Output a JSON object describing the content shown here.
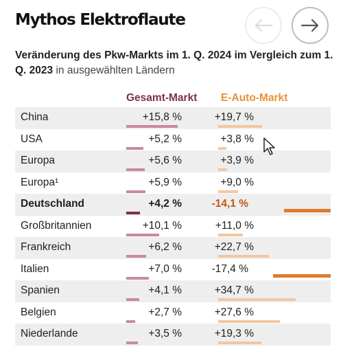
{
  "title": "Mythos Elektroflaute",
  "subtitle_bold": "Veränderung des Pkw-Markts im 1. Q. 2024 im Vergleich zum 1. Q. 2023",
  "subtitle_light": "in ausgewählten Ländern",
  "nav": {
    "prev_icon": "arrow-left-icon",
    "next_icon": "arrow-right-icon"
  },
  "colors": {
    "total_bar": "#c98a9b",
    "total_bar_highlight": "#7d3047",
    "ev_bar": "#f2c7a0",
    "ev_bar_negative": "#e07a2a"
  },
  "chart_data": {
    "type": "table",
    "columns": [
      "Gesamt-Markt",
      "E-Auto-Markt"
    ],
    "rows": [
      {
        "country": "China",
        "total": 15.8,
        "ev": 19.7,
        "total_label": "+15,8 %",
        "ev_label": "+19,7 %"
      },
      {
        "country": "USA",
        "total": 5.2,
        "ev": 3.8,
        "total_label": "+5,2 %",
        "ev_label": "+3,8 %"
      },
      {
        "country": "Europa",
        "total": 5.6,
        "ev": 3.9,
        "total_label": "+5,6 %",
        "ev_label": "+3,9 %"
      },
      {
        "country": "Europa¹",
        "total": 5.9,
        "ev": 9.0,
        "total_label": "+5,9 %",
        "ev_label": "+9,0 %"
      },
      {
        "country": "Deutschland",
        "total": 4.2,
        "ev": -14.1,
        "total_label": "+4,2 %",
        "ev_label": "-14,1 %",
        "highlight": true
      },
      {
        "country": "Großbritannien",
        "total": 10.1,
        "ev": 11.0,
        "total_label": "+10,1 %",
        "ev_label": "+11,0 %"
      },
      {
        "country": "Frankreich",
        "total": 6.2,
        "ev": 22.7,
        "total_label": "+6,2 %",
        "ev_label": "+22,7 %"
      },
      {
        "country": "Italien",
        "total": 7.0,
        "ev": -17.4,
        "total_label": "+7,0 %",
        "ev_label": "-17,4 %"
      },
      {
        "country": "Spanien",
        "total": 4.1,
        "ev": 34.7,
        "total_label": "+4,1 %",
        "ev_label": "+34,7 %"
      },
      {
        "country": "Belgien",
        "total": 2.7,
        "ev": 27.6,
        "total_label": "+2,7 %",
        "ev_label": "+27,6 %"
      },
      {
        "country": "Niederlande",
        "total": 3.5,
        "ev": 19.3,
        "total_label": "+3,5 %",
        "ev_label": "+19,3 %"
      }
    ]
  }
}
